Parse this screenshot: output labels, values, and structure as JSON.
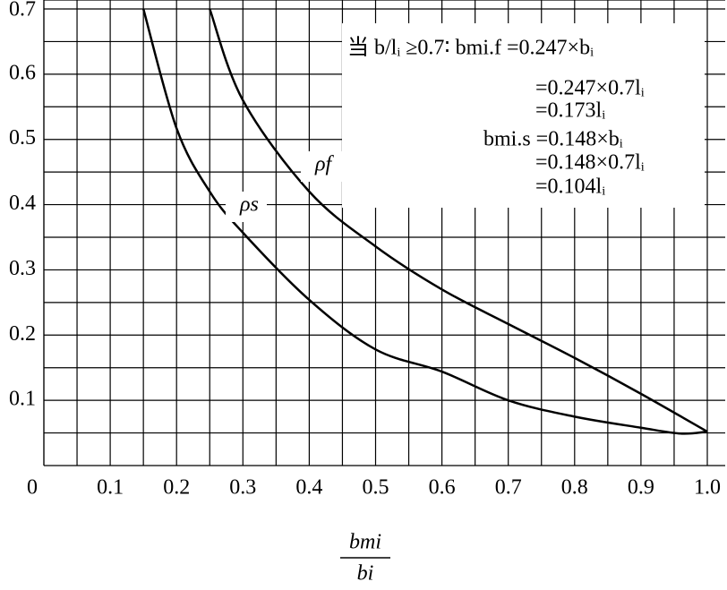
{
  "chart_data": {
    "type": "line",
    "x_label": {
      "numerator": "bmi",
      "denominator": "bi"
    },
    "xlim": [
      0,
      1
    ],
    "ylim": [
      0,
      0.7
    ],
    "xticks": [
      0,
      0.1,
      0.2,
      0.3,
      0.4,
      0.5,
      0.6,
      0.7,
      0.8,
      0.9,
      {
        "value": 1,
        "label": "1.0"
      }
    ],
    "yticks": [
      0.1,
      0.2,
      0.3,
      0.4,
      0.5,
      0.6,
      0.7
    ],
    "xminor": [
      0.05,
      0.15,
      0.25,
      0.35,
      0.45,
      0.55,
      0.65,
      0.75,
      0.85,
      0.95
    ],
    "yminor": [
      0.05,
      0.15,
      0.25,
      0.35,
      0.45,
      0.55,
      0.65
    ],
    "grid": true,
    "series": [
      {
        "name": "ρs",
        "color": "#000000",
        "x": [
          0.15,
          0.2,
          0.25,
          0.3,
          0.4,
          0.5,
          0.6,
          0.7,
          0.8,
          0.9,
          0.96,
          1.0
        ],
        "values": [
          0.7,
          0.517,
          0.42,
          0.357,
          0.254,
          0.178,
          0.144,
          0.1,
          0.075,
          0.058,
          0.049,
          0.052
        ]
      },
      {
        "name": "ρf",
        "color": "#000000",
        "x": [
          0.25,
          0.3,
          0.4,
          0.5,
          0.6,
          0.7,
          0.8,
          0.9,
          1.0
        ],
        "values": [
          0.7,
          0.56,
          0.42,
          0.336,
          0.27,
          0.217,
          0.165,
          0.11,
          0.052
        ]
      }
    ],
    "annotations": [
      "当 b/lᵢ ≥0.7∶ bmi.f =0.247×bᵢ",
      "=0.247×0.7lᵢ",
      "=0.173lᵢ",
      "bmi.s =0.148×bᵢ",
      "=0.148×0.7lᵢ",
      "=0.104lᵢ"
    ]
  }
}
